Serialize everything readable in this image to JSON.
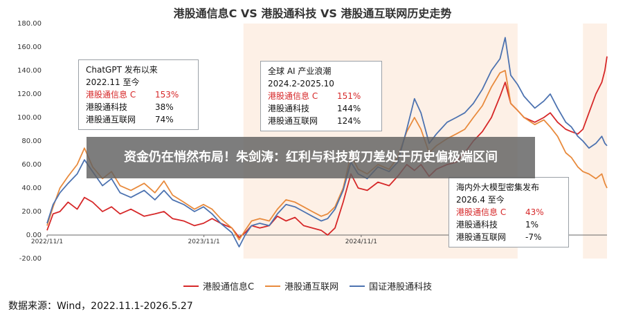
{
  "title": "港股通信息C VS 港股通科技 VS 港股通互联网历史走势",
  "banner": "资金仍在悄然布局！朱剑涛：红利与科技剪刀差处于历史偏极端区间",
  "source": "数据来源：Wind，2022.11.1-2026.5.27",
  "annotations": [
    {
      "heading_line1": "ChatGPT 发布以来",
      "heading_line2": "2022.11 至今",
      "rows": [
        {
          "name": "港股通信息 C",
          "value": "153%"
        },
        {
          "name": "港股通科技",
          "value": "38%"
        },
        {
          "name": "港股通互联网",
          "value": "74%"
        }
      ]
    },
    {
      "heading_line1": "全球 AI 产业浪潮",
      "heading_line2": "2024.2-2025.10",
      "rows": [
        {
          "name": "港股通信息 C",
          "value": "151%"
        },
        {
          "name": "港股通科技",
          "value": "144%"
        },
        {
          "name": "港股通互联网",
          "value": "124%"
        }
      ]
    },
    {
      "heading_line1": "海内外大模型密集发布",
      "heading_line2": "2026.4 至今",
      "rows": [
        {
          "name": "港股通信息 C",
          "value": "43%"
        },
        {
          "name": "港股通科技",
          "value": "1%"
        },
        {
          "name": "港股通互联网",
          "value": "-7%"
        }
      ]
    }
  ],
  "chart_data": {
    "type": "line",
    "title": "港股通信息C VS 港股通科技 VS 港股通互联网历史走势",
    "ylim": [
      -20,
      180
    ],
    "y_ticks": [
      "-20.00",
      "0.00",
      "20.00",
      "40.00",
      "60.00",
      "80.00",
      "100.00",
      "120.00",
      "140.00",
      "160.00",
      "180.00"
    ],
    "x_ticks": [
      "2022/11/1",
      "2023/11/1",
      "2024/11/1",
      "2025/11/1"
    ],
    "xlim": [
      "2022/11/1",
      "2026/5/27"
    ],
    "shaded_periods": [
      {
        "start": "2024/2/1",
        "end": "2025/10/31",
        "color": "#fdf0e6"
      },
      {
        "start": "2026/4/1",
        "end": "2026/5/27",
        "color": "#fdf0e6"
      }
    ],
    "series": [
      {
        "name": "港股通信息C",
        "color": "#d62728",
        "points": [
          [
            "2022/11/1",
            4
          ],
          [
            "2022/11/15",
            18
          ],
          [
            "2022/12/1",
            20
          ],
          [
            "2022/12/20",
            28
          ],
          [
            "2023/1/10",
            22
          ],
          [
            "2023/1/27",
            32
          ],
          [
            "2023/2/15",
            28
          ],
          [
            "2023/3/10",
            20
          ],
          [
            "2023/3/31",
            24
          ],
          [
            "2023/4/20",
            18
          ],
          [
            "2023/5/15",
            22
          ],
          [
            "2023/6/15",
            16
          ],
          [
            "2023/7/10",
            18
          ],
          [
            "2023/7/31",
            20
          ],
          [
            "2023/8/20",
            14
          ],
          [
            "2023/9/15",
            12
          ],
          [
            "2023/10/10",
            8
          ],
          [
            "2023/10/31",
            10
          ],
          [
            "2023/11/20",
            14
          ],
          [
            "2023/12/10",
            10
          ],
          [
            "2024/1/5",
            6
          ],
          [
            "2024/1/22",
            -2
          ],
          [
            "2024/2/5",
            2
          ],
          [
            "2024/2/20",
            8
          ],
          [
            "2024/3/10",
            6
          ],
          [
            "2024/4/1",
            8
          ],
          [
            "2024/4/20",
            16
          ],
          [
            "2024/5/10",
            12
          ],
          [
            "2024/5/31",
            15
          ],
          [
            "2024/6/20",
            8
          ],
          [
            "2024/7/10",
            6
          ],
          [
            "2024/7/31",
            4
          ],
          [
            "2024/8/15",
            0
          ],
          [
            "2024/9/1",
            6
          ],
          [
            "2024/9/20",
            28
          ],
          [
            "2024/10/8",
            52
          ],
          [
            "2024/10/25",
            40
          ],
          [
            "2024/11/15",
            38
          ],
          [
            "2024/12/10",
            45
          ],
          [
            "2025/1/5",
            42
          ],
          [
            "2025/1/25",
            50
          ],
          [
            "2025/2/15",
            60
          ],
          [
            "2025/3/5",
            55
          ],
          [
            "2025/3/20",
            60
          ],
          [
            "2025/4/8",
            50
          ],
          [
            "2025/4/25",
            56
          ],
          [
            "2025/5/20",
            60
          ],
          [
            "2025/6/10",
            62
          ],
          [
            "2025/6/30",
            70
          ],
          [
            "2025/7/20",
            80
          ],
          [
            "2025/8/10",
            88
          ],
          [
            "2025/8/31",
            100
          ],
          [
            "2025/9/20",
            118
          ],
          [
            "2025/10/2",
            130
          ],
          [
            "2025/10/15",
            112
          ],
          [
            "2025/10/31",
            106
          ],
          [
            "2025/11/15",
            100
          ],
          [
            "2025/12/10",
            96
          ],
          [
            "2025/12/31",
            100
          ],
          [
            "2026/1/15",
            104
          ],
          [
            "2026/2/1",
            96
          ],
          [
            "2026/2/20",
            90
          ],
          [
            "2026/3/5",
            88
          ],
          [
            "2026/3/20",
            86
          ],
          [
            "2026/4/1",
            90
          ],
          [
            "2026/4/15",
            104
          ],
          [
            "2026/5/1",
            120
          ],
          [
            "2026/5/15",
            130
          ],
          [
            "2026/5/22",
            140
          ],
          [
            "2026/5/27",
            152
          ]
        ]
      },
      {
        "name": "港股通互联网",
        "color": "#e88a3c",
        "points": [
          [
            "2022/11/1",
            8
          ],
          [
            "2022/11/15",
            24
          ],
          [
            "2022/12/1",
            40
          ],
          [
            "2022/12/20",
            50
          ],
          [
            "2023/1/10",
            60
          ],
          [
            "2023/1/27",
            74
          ],
          [
            "2023/2/15",
            58
          ],
          [
            "2023/3/10",
            48
          ],
          [
            "2023/3/31",
            54
          ],
          [
            "2023/4/20",
            42
          ],
          [
            "2023/5/15",
            38
          ],
          [
            "2023/6/15",
            44
          ],
          [
            "2023/7/10",
            36
          ],
          [
            "2023/7/31",
            46
          ],
          [
            "2023/8/20",
            34
          ],
          [
            "2023/9/15",
            28
          ],
          [
            "2023/10/10",
            22
          ],
          [
            "2023/10/31",
            26
          ],
          [
            "2023/11/20",
            22
          ],
          [
            "2023/12/10",
            14
          ],
          [
            "2024/1/5",
            6
          ],
          [
            "2024/1/22",
            -4
          ],
          [
            "2024/2/5",
            4
          ],
          [
            "2024/2/20",
            12
          ],
          [
            "2024/3/10",
            14
          ],
          [
            "2024/4/1",
            12
          ],
          [
            "2024/4/20",
            22
          ],
          [
            "2024/5/10",
            30
          ],
          [
            "2024/5/31",
            28
          ],
          [
            "2024/6/20",
            24
          ],
          [
            "2024/7/10",
            20
          ],
          [
            "2024/7/31",
            16
          ],
          [
            "2024/8/15",
            18
          ],
          [
            "2024/9/1",
            24
          ],
          [
            "2024/9/20",
            40
          ],
          [
            "2024/10/8",
            68
          ],
          [
            "2024/10/25",
            56
          ],
          [
            "2024/11/15",
            52
          ],
          [
            "2024/12/10",
            60
          ],
          [
            "2025/1/5",
            56
          ],
          [
            "2025/1/25",
            66
          ],
          [
            "2025/2/15",
            88
          ],
          [
            "2025/3/5",
            100
          ],
          [
            "2025/3/20",
            90
          ],
          [
            "2025/4/8",
            70
          ],
          [
            "2025/4/25",
            76
          ],
          [
            "2025/5/20",
            82
          ],
          [
            "2025/6/10",
            86
          ],
          [
            "2025/6/30",
            90
          ],
          [
            "2025/7/20",
            100
          ],
          [
            "2025/8/10",
            110
          ],
          [
            "2025/8/31",
            126
          ],
          [
            "2025/9/20",
            138
          ],
          [
            "2025/10/2",
            140
          ],
          [
            "2025/10/15",
            112
          ],
          [
            "2025/10/31",
            106
          ],
          [
            "2025/11/15",
            100
          ],
          [
            "2025/12/10",
            94
          ],
          [
            "2025/12/31",
            98
          ],
          [
            "2026/1/15",
            92
          ],
          [
            "2026/2/1",
            84
          ],
          [
            "2026/2/20",
            70
          ],
          [
            "2026/3/5",
            66
          ],
          [
            "2026/3/20",
            58
          ],
          [
            "2026/4/1",
            54
          ],
          [
            "2026/4/15",
            52
          ],
          [
            "2026/5/1",
            48
          ],
          [
            "2026/5/15",
            52
          ],
          [
            "2026/5/22",
            44
          ],
          [
            "2026/5/27",
            40
          ]
        ]
      },
      {
        "name": "国证港股通科技",
        "color": "#4c72b0",
        "points": [
          [
            "2022/11/1",
            10
          ],
          [
            "2022/11/15",
            26
          ],
          [
            "2022/12/1",
            36
          ],
          [
            "2022/12/20",
            44
          ],
          [
            "2023/1/10",
            52
          ],
          [
            "2023/1/27",
            64
          ],
          [
            "2023/2/15",
            54
          ],
          [
            "2023/3/10",
            42
          ],
          [
            "2023/3/31",
            48
          ],
          [
            "2023/4/20",
            36
          ],
          [
            "2023/5/15",
            32
          ],
          [
            "2023/6/15",
            38
          ],
          [
            "2023/7/10",
            30
          ],
          [
            "2023/7/31",
            38
          ],
          [
            "2023/8/20",
            30
          ],
          [
            "2023/9/15",
            26
          ],
          [
            "2023/10/10",
            20
          ],
          [
            "2023/10/31",
            24
          ],
          [
            "2023/11/20",
            18
          ],
          [
            "2023/12/10",
            10
          ],
          [
            "2024/1/5",
            2
          ],
          [
            "2024/1/22",
            -10
          ],
          [
            "2024/2/5",
            0
          ],
          [
            "2024/2/20",
            8
          ],
          [
            "2024/3/10",
            10
          ],
          [
            "2024/4/1",
            8
          ],
          [
            "2024/4/20",
            18
          ],
          [
            "2024/5/10",
            26
          ],
          [
            "2024/5/31",
            24
          ],
          [
            "2024/6/20",
            20
          ],
          [
            "2024/7/10",
            16
          ],
          [
            "2024/7/31",
            12
          ],
          [
            "2024/8/15",
            14
          ],
          [
            "2024/9/1",
            22
          ],
          [
            "2024/9/20",
            38
          ],
          [
            "2024/10/8",
            62
          ],
          [
            "2024/10/25",
            52
          ],
          [
            "2024/11/15",
            48
          ],
          [
            "2024/12/10",
            58
          ],
          [
            "2025/1/5",
            54
          ],
          [
            "2025/1/25",
            62
          ],
          [
            "2025/2/15",
            90
          ],
          [
            "2025/3/5",
            116
          ],
          [
            "2025/3/20",
            104
          ],
          [
            "2025/4/8",
            78
          ],
          [
            "2025/4/25",
            86
          ],
          [
            "2025/5/20",
            96
          ],
          [
            "2025/6/10",
            100
          ],
          [
            "2025/6/30",
            104
          ],
          [
            "2025/7/20",
            112
          ],
          [
            "2025/8/10",
            124
          ],
          [
            "2025/8/31",
            140
          ],
          [
            "2025/9/20",
            150
          ],
          [
            "2025/10/2",
            168
          ],
          [
            "2025/10/15",
            136
          ],
          [
            "2025/10/31",
            128
          ],
          [
            "2025/11/15",
            118
          ],
          [
            "2025/12/10",
            108
          ],
          [
            "2025/12/31",
            114
          ],
          [
            "2026/1/15",
            120
          ],
          [
            "2026/2/1",
            108
          ],
          [
            "2026/2/20",
            96
          ],
          [
            "2026/3/5",
            92
          ],
          [
            "2026/3/20",
            84
          ],
          [
            "2026/4/1",
            80
          ],
          [
            "2026/4/15",
            74
          ],
          [
            "2026/5/1",
            78
          ],
          [
            "2026/5/15",
            84
          ],
          [
            "2026/5/22",
            78
          ],
          [
            "2026/5/27",
            76
          ]
        ]
      }
    ]
  }
}
